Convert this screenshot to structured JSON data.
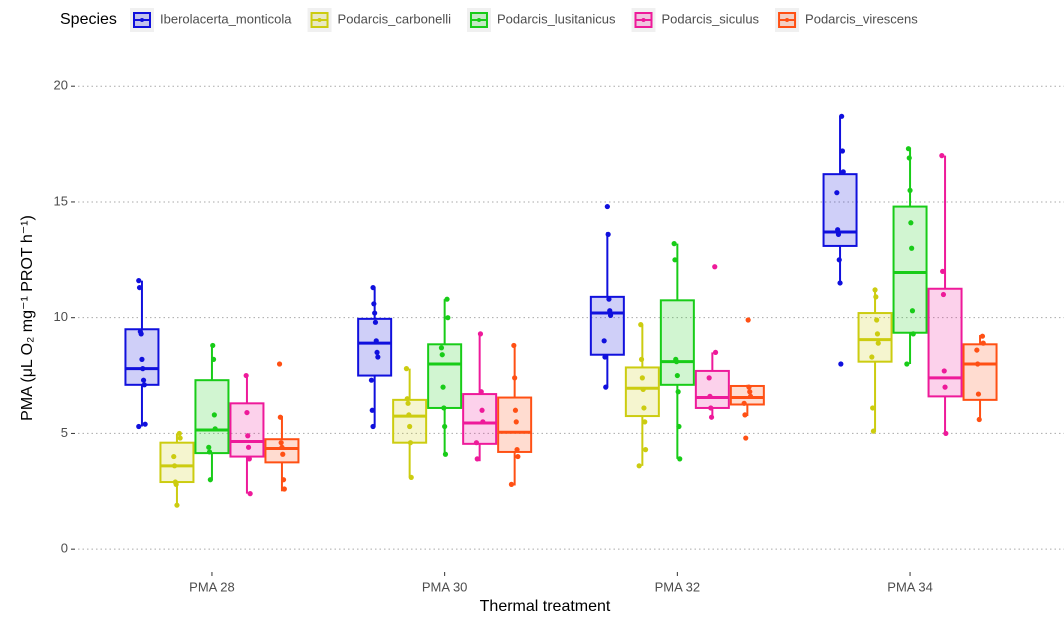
{
  "chart_data": {
    "type": "boxplot",
    "legend_title": "Species",
    "x_label": "Thermal treatment",
    "y_label": "PMA (μL O₂ mg⁻¹ PROT h⁻¹)",
    "categories": [
      "PMA 28",
      "PMA 30",
      "PMA 32",
      "PMA 34"
    ],
    "ylim": [
      -0.9,
      20.7
    ],
    "yticks": [
      0,
      5,
      10,
      15,
      20
    ],
    "grid": true,
    "legend_position": "top",
    "series": [
      {
        "name": "Iberolacerta_monticola",
        "color": "#1010dd",
        "boxes": [
          {
            "whisker_low": 5.3,
            "q1": 7.1,
            "median": 7.8,
            "q3": 9.5,
            "whisker_high": 11.6,
            "points": [
              11.6,
              11.3,
              9.4,
              9.3,
              8.2,
              7.8,
              7.3,
              7.1,
              5.4,
              5.3
            ]
          },
          {
            "whisker_low": 5.3,
            "q1": 7.5,
            "median": 8.9,
            "q3": 9.95,
            "whisker_high": 11.3,
            "points": [
              11.3,
              10.6,
              10.2,
              9.8,
              9.0,
              8.5,
              8.3,
              7.3,
              6.0,
              5.3
            ]
          },
          {
            "whisker_low": 7.0,
            "q1": 8.4,
            "median": 10.2,
            "q3": 10.9,
            "whisker_high": 13.7,
            "points": [
              14.8,
              13.6,
              10.8,
              10.3,
              10.1,
              9.0,
              8.3,
              7.0
            ]
          },
          {
            "whisker_low": 11.5,
            "q1": 13.1,
            "median": 13.7,
            "q3": 16.2,
            "whisker_high": 18.7,
            "points": [
              18.7,
              17.2,
              16.3,
              15.4,
              13.8,
              13.6,
              12.5,
              11.5,
              8.0
            ]
          }
        ]
      },
      {
        "name": "Podarcis_carbonelli",
        "color": "#cccc10",
        "boxes": [
          {
            "whisker_low": 1.95,
            "q1": 2.9,
            "median": 3.6,
            "q3": 4.6,
            "whisker_high": 5.0,
            "points": [
              5.0,
              4.8,
              4.0,
              3.6,
              2.9,
              2.8,
              1.9
            ]
          },
          {
            "whisker_low": 3.1,
            "q1": 4.6,
            "median": 5.75,
            "q3": 6.45,
            "whisker_high": 7.8,
            "points": [
              7.8,
              6.5,
              6.3,
              5.8,
              5.3,
              4.6,
              3.1
            ]
          },
          {
            "whisker_low": 3.6,
            "q1": 5.75,
            "median": 6.95,
            "q3": 7.85,
            "whisker_high": 9.7,
            "points": [
              9.7,
              8.2,
              7.4,
              6.9,
              6.1,
              5.5,
              4.3,
              3.6
            ]
          },
          {
            "whisker_low": 5.1,
            "q1": 8.1,
            "median": 9.05,
            "q3": 10.2,
            "whisker_high": 11.2,
            "points": [
              11.2,
              10.9,
              9.9,
              9.3,
              8.9,
              8.3,
              6.1,
              5.1
            ]
          }
        ]
      },
      {
        "name": "Podarcis_lusitanicus",
        "color": "#18cc18",
        "boxes": [
          {
            "whisker_low": 3.0,
            "q1": 4.15,
            "median": 5.15,
            "q3": 7.3,
            "whisker_high": 8.8,
            "points": [
              8.8,
              8.2,
              5.8,
              5.2,
              4.4,
              4.2,
              3.0
            ]
          },
          {
            "whisker_low": 4.05,
            "q1": 6.1,
            "median": 8.0,
            "q3": 8.85,
            "whisker_high": 10.8,
            "points": [
              10.8,
              10.0,
              8.7,
              8.4,
              7.0,
              6.1,
              5.3,
              4.1
            ]
          },
          {
            "whisker_low": 3.9,
            "q1": 7.1,
            "median": 8.1,
            "q3": 10.75,
            "whisker_high": 13.2,
            "points": [
              13.2,
              12.5,
              8.2,
              8.1,
              7.5,
              6.8,
              5.3,
              3.9
            ]
          },
          {
            "whisker_low": 8.0,
            "q1": 9.35,
            "median": 11.95,
            "q3": 14.8,
            "whisker_high": 17.35,
            "points": [
              17.3,
              16.9,
              15.5,
              14.1,
              13.0,
              10.3,
              9.3,
              8.0
            ]
          }
        ]
      },
      {
        "name": "Podarcis_siculus",
        "color": "#ee1a9a",
        "boxes": [
          {
            "whisker_low": 2.4,
            "q1": 4.0,
            "median": 4.65,
            "q3": 6.3,
            "whisker_high": 7.55,
            "points": [
              7.5,
              5.9,
              4.9,
              4.4,
              3.9,
              2.4
            ]
          },
          {
            "whisker_low": 3.8,
            "q1": 4.55,
            "median": 5.45,
            "q3": 6.7,
            "whisker_high": 9.35,
            "points": [
              9.3,
              6.8,
              6.0,
              5.5,
              4.6,
              3.9
            ]
          },
          {
            "whisker_low": 5.65,
            "q1": 6.1,
            "median": 6.55,
            "q3": 7.7,
            "whisker_high": 8.5,
            "points": [
              12.2,
              8.5,
              7.4,
              6.6,
              6.1,
              5.7
            ]
          },
          {
            "whisker_low": 5.0,
            "q1": 6.6,
            "median": 7.4,
            "q3": 11.25,
            "whisker_high": 17.0,
            "points": [
              17.0,
              12.0,
              11.0,
              7.7,
              7.0,
              5.0
            ]
          }
        ]
      },
      {
        "name": "Podarcis_virescens",
        "color": "#ff5014",
        "boxes": [
          {
            "whisker_low": 2.5,
            "q1": 3.75,
            "median": 4.35,
            "q3": 4.75,
            "whisker_high": 5.75,
            "points": [
              8.0,
              5.7,
              4.6,
              4.4,
              4.1,
              3.0,
              2.6
            ]
          },
          {
            "whisker_low": 2.75,
            "q1": 4.2,
            "median": 5.05,
            "q3": 6.55,
            "whisker_high": 8.8,
            "points": [
              8.8,
              7.4,
              6.0,
              5.5,
              4.3,
              4.0,
              2.8
            ]
          },
          {
            "whisker_low": 5.75,
            "q1": 6.25,
            "median": 6.55,
            "q3": 7.05,
            "whisker_high": 7.1,
            "points": [
              9.9,
              7.0,
              6.8,
              6.6,
              6.3,
              5.8,
              4.8
            ]
          },
          {
            "whisker_low": 5.65,
            "q1": 6.45,
            "median": 8.0,
            "q3": 8.85,
            "whisker_high": 9.25,
            "points": [
              9.2,
              8.9,
              8.6,
              8.0,
              6.7,
              5.6
            ]
          }
        ]
      }
    ]
  }
}
